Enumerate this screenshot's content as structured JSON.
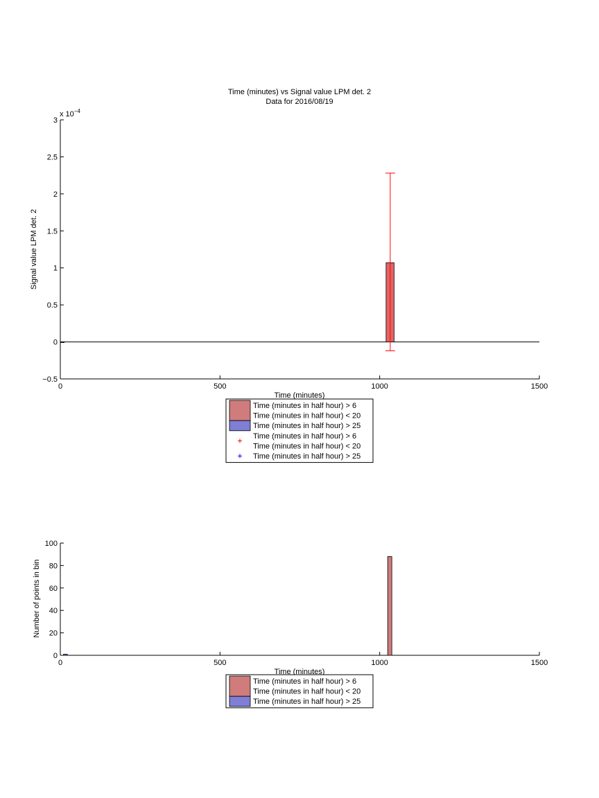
{
  "chart_data": [
    {
      "type": "bar",
      "title": "Time (minutes) vs Signal value LPM det. 2",
      "subtitle": "Data for 2016/08/19",
      "xlabel": "Time (minutes)",
      "ylabel": "Signal value LPM det. 2",
      "y_exponent_label": "x 10",
      "y_exponent_power": "−4",
      "xlim": [
        0,
        1500
      ],
      "ylim": [
        -0.5,
        3
      ],
      "y_scale": 0.0001,
      "x_ticks": [
        0,
        500,
        1000,
        1500
      ],
      "x_tick_labels": [
        "0",
        "500",
        "1000",
        "1500"
      ],
      "y_ticks": [
        -0.5,
        0,
        0.5,
        1,
        1.5,
        2,
        2.5,
        3
      ],
      "y_tick_labels": [
        "−0.5",
        "0",
        "0.5",
        "1",
        "1.5",
        "2",
        "2.5",
        "3"
      ],
      "grid": false,
      "legend_position": "below",
      "series": [
        {
          "name": "Time (minutes in half hour) > 6\nTime (minutes in half hour) < 20",
          "color": "#e06666",
          "bars": [
            {
              "x0": 1020,
              "x1": 1045,
              "value": 1.07
            }
          ],
          "errorbars": [
            {
              "x": 1033,
              "low": -0.12,
              "high": 2.28
            }
          ]
        },
        {
          "name": "Time (minutes in half hour) > 25",
          "color": "#6a6ad8",
          "bars": [
            {
              "x0": 0,
              "x1": 12,
              "value": 0.0
            }
          ],
          "errorbars": []
        }
      ],
      "legend": [
        {
          "kind": "patch",
          "color": "#d07c7c",
          "lines": [
            "Time (minutes in half hour) > 6",
            "Time (minutes in half hour) < 20"
          ]
        },
        {
          "kind": "patch",
          "color": "#7f7fd6",
          "lines": [
            "Time (minutes in half hour) > 25"
          ]
        },
        {
          "kind": "marker",
          "color": "#ff0000",
          "lines": [
            "Time (minutes in half hour) > 6",
            "Time (minutes in half hour) < 20"
          ]
        },
        {
          "kind": "marker",
          "color": "#0000ff",
          "lines": [
            "Time (minutes in half hour) > 25"
          ]
        }
      ]
    },
    {
      "type": "bar",
      "title": "",
      "xlabel": "Time (minutes)",
      "ylabel": "Number of points in bin",
      "xlim": [
        0,
        1500
      ],
      "ylim": [
        0,
        100
      ],
      "x_ticks": [
        0,
        500,
        1000,
        1500
      ],
      "x_tick_labels": [
        "0",
        "500",
        "1000",
        "1500"
      ],
      "y_ticks": [
        0,
        20,
        40,
        60,
        80,
        100
      ],
      "y_tick_labels": [
        "0",
        "20",
        "40",
        "60",
        "80",
        "100"
      ],
      "grid": false,
      "legend_position": "below",
      "series": [
        {
          "name": "Time (minutes in half hour) > 6\nTime (minutes in half hour) < 20",
          "color": "#d07c7c",
          "bars": [
            {
              "x0": 1025,
              "x1": 1038,
              "value": 88
            }
          ]
        },
        {
          "name": "Time (minutes in half hour) > 25",
          "color": "#7f7fd6",
          "bars": [
            {
              "x0": 10,
              "x1": 22,
              "value": 1
            }
          ]
        }
      ],
      "legend": [
        {
          "kind": "patch",
          "color": "#d07c7c",
          "lines": [
            "Time (minutes in half hour) > 6",
            "Time (minutes in half hour) < 20"
          ]
        },
        {
          "kind": "patch",
          "color": "#7f7fd6",
          "lines": [
            "Time (minutes in half hour) > 25"
          ]
        }
      ]
    }
  ]
}
